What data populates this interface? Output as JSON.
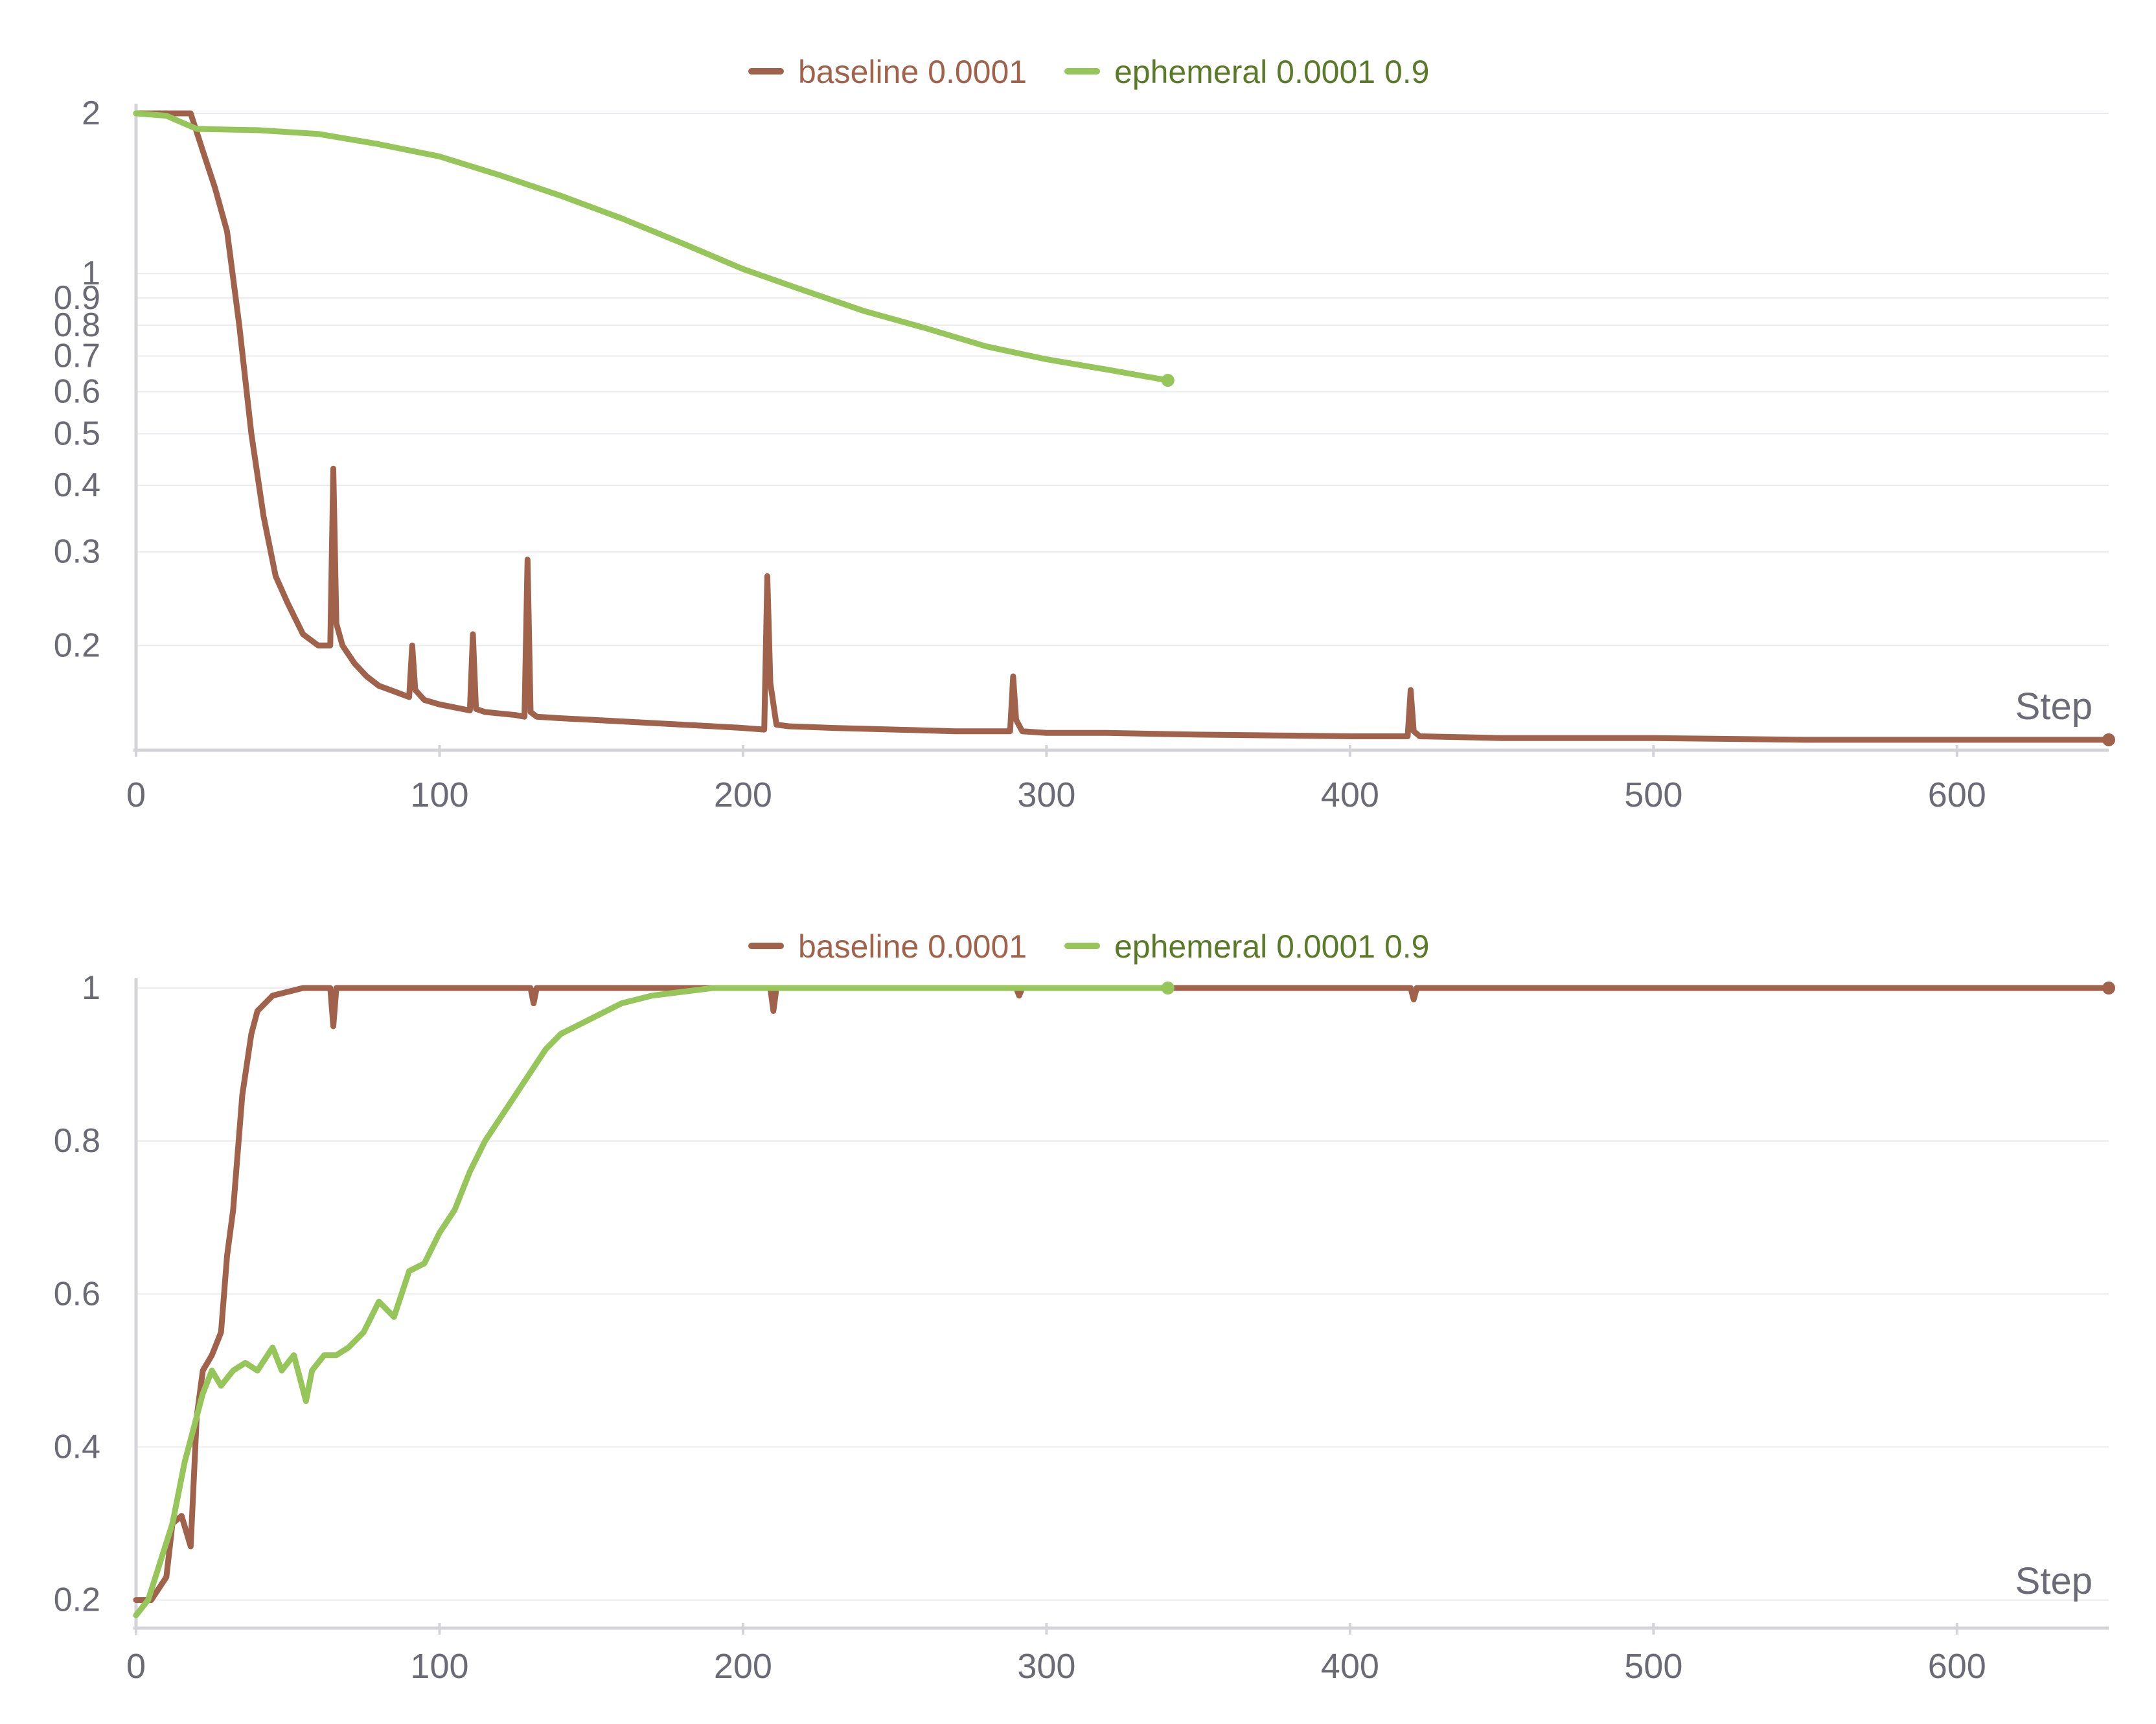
{
  "colors": {
    "baseline": "#a0624a",
    "ephemeral": "#96c55a",
    "axis": "#d4d4d8",
    "grid": "#ebebef",
    "tick_text": "#6b6b76",
    "legend_ephemeral_text": "#5a7a28"
  },
  "chart_data": [
    {
      "type": "line",
      "title": "",
      "xlabel": "Step",
      "ylabel": "",
      "xlim": [
        0,
        650
      ],
      "ylim": [
        0.13,
        2.0
      ],
      "yscale": "log",
      "x_ticks": [
        0,
        100,
        200,
        300,
        400,
        500,
        600
      ],
      "x_tick_labels": [
        "0",
        "100",
        "200",
        "300",
        "400",
        "500",
        "600"
      ],
      "y_ticks": [
        2,
        1,
        0.9,
        0.8,
        0.7,
        0.6,
        0.5,
        0.4,
        0.3,
        0.2
      ],
      "y_tick_labels": [
        "2",
        "1",
        "0.9",
        "0.8",
        "0.7",
        "0.6",
        "0.5",
        "0.4",
        "0.3",
        "0.2"
      ],
      "grid": true,
      "legend_position": "top-center",
      "series": [
        {
          "name": "baseline 0.0001",
          "color_key": "baseline",
          "x": [
            0,
            10,
            18,
            22,
            26,
            30,
            34,
            38,
            42,
            46,
            50,
            55,
            60,
            64,
            65,
            66,
            68,
            72,
            76,
            80,
            85,
            90,
            91,
            92,
            95,
            100,
            105,
            110,
            111,
            112,
            115,
            120,
            125,
            128,
            129,
            130,
            132,
            140,
            150,
            160,
            170,
            180,
            190,
            200,
            207,
            208,
            209,
            211,
            215,
            230,
            250,
            270,
            288,
            289,
            290,
            292,
            300,
            320,
            350,
            400,
            419,
            420,
            421,
            423,
            450,
            500,
            550,
            600,
            650
          ],
          "y": [
            2.0,
            2.0,
            2.0,
            1.7,
            1.45,
            1.2,
            0.8,
            0.5,
            0.35,
            0.27,
            0.24,
            0.21,
            0.2,
            0.2,
            0.43,
            0.22,
            0.2,
            0.185,
            0.175,
            0.168,
            0.164,
            0.16,
            0.2,
            0.165,
            0.158,
            0.155,
            0.153,
            0.151,
            0.21,
            0.152,
            0.15,
            0.149,
            0.148,
            0.147,
            0.29,
            0.15,
            0.147,
            0.146,
            0.145,
            0.144,
            0.143,
            0.142,
            0.141,
            0.14,
            0.139,
            0.27,
            0.17,
            0.142,
            0.141,
            0.14,
            0.139,
            0.138,
            0.138,
            0.175,
            0.145,
            0.138,
            0.137,
            0.137,
            0.136,
            0.135,
            0.135,
            0.165,
            0.138,
            0.135,
            0.134,
            0.134,
            0.133,
            0.133,
            0.133
          ]
        },
        {
          "name": "ephemeral 0.0001 0.9",
          "color_key": "ephemeral",
          "x": [
            0,
            10,
            20,
            40,
            60,
            80,
            100,
            120,
            140,
            160,
            180,
            200,
            220,
            240,
            260,
            280,
            300,
            320,
            340
          ],
          "y": [
            2.0,
            1.98,
            1.87,
            1.86,
            1.83,
            1.75,
            1.66,
            1.53,
            1.4,
            1.27,
            1.14,
            1.02,
            0.93,
            0.85,
            0.79,
            0.73,
            0.69,
            0.66,
            0.63
          ]
        }
      ]
    },
    {
      "type": "line",
      "title": "",
      "xlabel": "Step",
      "ylabel": "",
      "xlim": [
        0,
        650
      ],
      "ylim": [
        0.17,
        1.0
      ],
      "yscale": "linear",
      "x_ticks": [
        0,
        100,
        200,
        300,
        400,
        500,
        600
      ],
      "x_tick_labels": [
        "0",
        "100",
        "200",
        "300",
        "400",
        "500",
        "600"
      ],
      "y_ticks": [
        1,
        0.8,
        0.6,
        0.4,
        0.2
      ],
      "y_tick_labels": [
        "1",
        "0.8",
        "0.6",
        "0.4",
        "0.2"
      ],
      "grid": true,
      "legend_position": "top-center",
      "series": [
        {
          "name": "baseline 0.0001",
          "color_key": "baseline",
          "x": [
            0,
            5,
            10,
            12,
            15,
            18,
            20,
            22,
            25,
            28,
            30,
            32,
            35,
            38,
            40,
            45,
            50,
            55,
            60,
            64,
            65,
            66,
            70,
            80,
            100,
            130,
            131,
            132,
            200,
            209,
            210,
            211,
            250,
            290,
            291,
            292,
            420,
            421,
            422,
            500,
            600,
            650
          ],
          "y": [
            0.2,
            0.2,
            0.23,
            0.3,
            0.31,
            0.27,
            0.44,
            0.5,
            0.52,
            0.55,
            0.65,
            0.71,
            0.86,
            0.94,
            0.97,
            0.99,
            0.995,
            1.0,
            1.0,
            1.0,
            0.95,
            1.0,
            1.0,
            1.0,
            1.0,
            1.0,
            0.98,
            1.0,
            1.0,
            1.0,
            0.97,
            1.0,
            1.0,
            1.0,
            0.99,
            1.0,
            1.0,
            0.985,
            1.0,
            1.0,
            1.0,
            1.0
          ]
        },
        {
          "name": "ephemeral 0.0001 0.9",
          "color_key": "ephemeral",
          "x": [
            0,
            4,
            8,
            12,
            16,
            20,
            22,
            25,
            28,
            32,
            36,
            40,
            45,
            48,
            52,
            56,
            58,
            62,
            66,
            70,
            75,
            80,
            85,
            90,
            95,
            100,
            105,
            110,
            115,
            120,
            125,
            130,
            135,
            140,
            150,
            160,
            170,
            180,
            190,
            200,
            220,
            250,
            300,
            340
          ],
          "y": [
            0.18,
            0.2,
            0.25,
            0.3,
            0.38,
            0.44,
            0.47,
            0.5,
            0.48,
            0.5,
            0.51,
            0.5,
            0.53,
            0.5,
            0.52,
            0.46,
            0.5,
            0.52,
            0.52,
            0.53,
            0.55,
            0.59,
            0.57,
            0.63,
            0.64,
            0.68,
            0.71,
            0.76,
            0.8,
            0.83,
            0.86,
            0.89,
            0.92,
            0.94,
            0.96,
            0.98,
            0.99,
            0.995,
            1.0,
            1.0,
            1.0,
            1.0,
            1.0,
            1.0
          ]
        }
      ]
    }
  ]
}
